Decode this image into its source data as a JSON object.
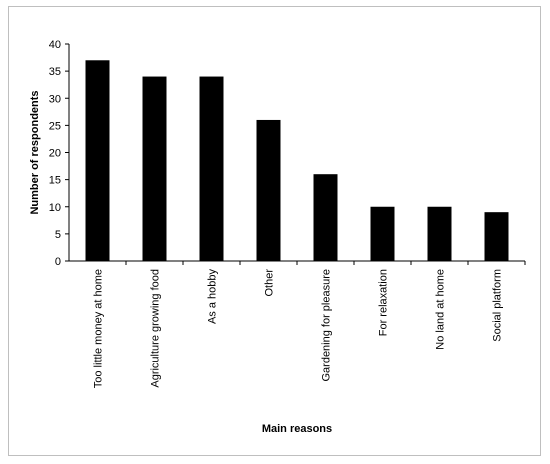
{
  "chart_data": {
    "type": "bar",
    "title": "",
    "xlabel": "Main reasons",
    "ylabel": "Number of respondents",
    "ylim": [
      0,
      40
    ],
    "yticks": [
      0,
      5,
      10,
      15,
      20,
      25,
      30,
      35,
      40
    ],
    "grid": false,
    "bar_color": "#000000",
    "categories": [
      "Too little money at home",
      "Agriculture growing food",
      "As a hobby",
      "Other",
      "Gardening for pleasure",
      "For relaxation",
      "No land at home",
      "Social platform"
    ],
    "values": [
      37,
      34,
      34,
      26,
      16,
      10,
      10,
      9
    ]
  }
}
